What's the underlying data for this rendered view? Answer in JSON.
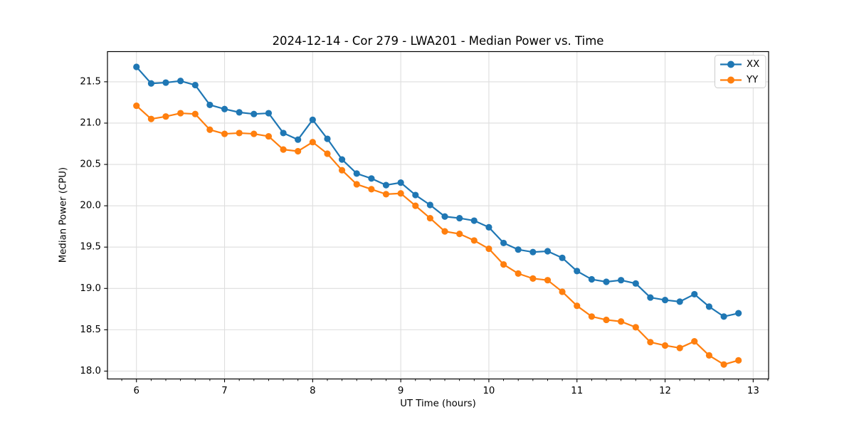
{
  "chart_data": {
    "type": "line",
    "title": "2024-12-14 - Cor 279 - LWA201 - Median Power vs. Time",
    "xlabel": "UT Time (hours)",
    "ylabel": "Median Power (CPU)",
    "xlim": [
      5.671,
      13.175
    ],
    "ylim": [
      17.905,
      21.865
    ],
    "xticks": [
      6,
      7,
      8,
      9,
      10,
      11,
      12,
      13
    ],
    "xtick_labels": [
      "6",
      "7",
      "8",
      "9",
      "10",
      "11",
      "12",
      "13"
    ],
    "yticks": [
      18.0,
      18.5,
      19.0,
      19.5,
      20.0,
      20.5,
      21.0,
      21.5
    ],
    "ytick_labels": [
      "18.0",
      "18.5",
      "19.0",
      "19.5",
      "20.0",
      "20.5",
      "21.0",
      "21.5"
    ],
    "x_minor_divisions": 6,
    "grid": "major",
    "legend": {
      "location": "upper right",
      "entries": [
        "XX",
        "YY"
      ]
    },
    "x": [
      6.0,
      6.167,
      6.333,
      6.5,
      6.667,
      6.833,
      7.0,
      7.167,
      7.333,
      7.5,
      7.667,
      7.833,
      8.0,
      8.167,
      8.333,
      8.5,
      8.667,
      8.833,
      9.0,
      9.167,
      9.333,
      9.5,
      9.667,
      9.833,
      10.0,
      10.167,
      10.333,
      10.5,
      10.667,
      10.833,
      11.0,
      11.167,
      11.333,
      11.5,
      11.667,
      11.833,
      12.0,
      12.167,
      12.333,
      12.5,
      12.667,
      12.833
    ],
    "series": [
      {
        "name": "XX",
        "color": "#1f77b4",
        "values": [
          21.68,
          21.48,
          21.49,
          21.51,
          21.46,
          21.22,
          21.17,
          21.13,
          21.11,
          21.12,
          20.88,
          20.8,
          21.04,
          20.81,
          20.56,
          20.39,
          20.33,
          20.25,
          20.28,
          20.13,
          20.01,
          19.87,
          19.85,
          19.82,
          19.74,
          19.55,
          19.47,
          19.44,
          19.45,
          19.37,
          19.21,
          19.11,
          19.08,
          19.1,
          19.06,
          18.89,
          18.86,
          18.84,
          18.93,
          18.78,
          18.66,
          18.7
        ]
      },
      {
        "name": "YY",
        "color": "#ff7f0e",
        "values": [
          21.21,
          21.05,
          21.08,
          21.12,
          21.11,
          20.92,
          20.87,
          20.88,
          20.87,
          20.84,
          20.68,
          20.66,
          20.77,
          20.63,
          20.43,
          20.26,
          20.2,
          20.14,
          20.15,
          20.0,
          19.85,
          19.69,
          19.66,
          19.58,
          19.48,
          19.29,
          19.18,
          19.12,
          19.1,
          18.96,
          18.79,
          18.66,
          18.62,
          18.6,
          18.53,
          18.35,
          18.31,
          18.28,
          18.36,
          18.19,
          18.08,
          18.13
        ]
      }
    ],
    "style": {
      "grid_color": "#dedede",
      "spine_color": "#000000",
      "text_color": "#000000",
      "background": "#ffffff"
    }
  }
}
